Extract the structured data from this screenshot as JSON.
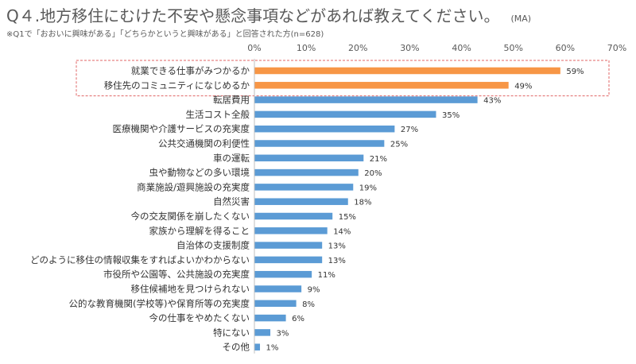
{
  "header": {
    "title": "Q４.地方移住にむけた不安や懸念事項などがあれば教えてください。",
    "unit": "(MA)",
    "note": "※Q1で「おおいに興味がある」「どちらかというと興味がある」と回答された方(n=628)"
  },
  "colors": {
    "highlight": "#F79646",
    "normal": "#5B9BD5",
    "highlight_box": "#E06666"
  },
  "chart_data": {
    "type": "bar",
    "orientation": "horizontal",
    "categories": [
      "就業できる仕事がみつかるか",
      "移住先のコミュニティになじめるか",
      "転居費用",
      "生活コスト全般",
      "医療機関や介護サービスの充実度",
      "公共交通機関の利便性",
      "車の運転",
      "虫や動物などの多い環境",
      "商業施設/遊興施設の充実度",
      "自然災害",
      "今の交友関係を崩したくない",
      "家族から理解を得ること",
      "自治体の支援制度",
      "どのように移住の情報収集をすればよいかわからない",
      "市役所や公園等、公共施設の充実度",
      "移住候補地を見つけられない",
      "公的な教育機関(学校等)や保育所等の充実度",
      "今の仕事をやめたくない",
      "特にない",
      "その他"
    ],
    "values": [
      59,
      49,
      43,
      35,
      27,
      25,
      21,
      20,
      19,
      18,
      15,
      14,
      13,
      13,
      11,
      9,
      8,
      6,
      3,
      1
    ],
    "value_labels": [
      "59%",
      "49%",
      "43%",
      "35%",
      "27%",
      "25%",
      "21%",
      "20%",
      "19%",
      "18%",
      "15%",
      "14%",
      "13%",
      "13%",
      "11%",
      "9%",
      "8%",
      "6%",
      "3%",
      "1%"
    ],
    "highlighted": [
      true,
      true,
      false,
      false,
      false,
      false,
      false,
      false,
      false,
      false,
      false,
      false,
      false,
      false,
      false,
      false,
      false,
      false,
      false,
      false
    ],
    "xlim": [
      0,
      70
    ],
    "xticks": [
      0,
      10,
      20,
      30,
      40,
      50,
      60,
      70
    ],
    "xtick_labels": [
      "0%",
      "10%",
      "20%",
      "30%",
      "40%",
      "50%",
      "60%",
      "70%"
    ],
    "grid": false,
    "axis_position": "top"
  }
}
